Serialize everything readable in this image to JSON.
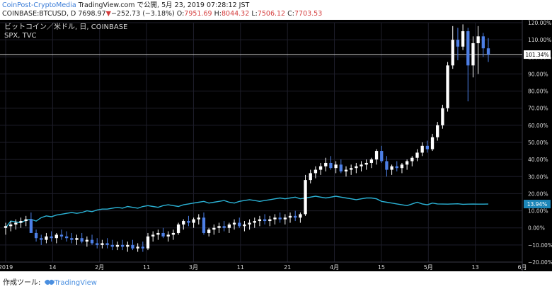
{
  "header": {
    "credit_link": "CoinPost-CryptoMedia",
    "credit_rest": " TradingView.com で公開, 5月 23, 2019 07:28:12 JST",
    "symbol": "COINBASE:BTCUSD, D",
    "last": "7698.97",
    "change_arrow": "▼",
    "change": "−252.73 (−3.18%)",
    "o_label": "O:",
    "o_value": "7951.69",
    "h_label": "H:",
    "h_value": "8044.32",
    "l_label": "L:",
    "l_value": "7506.12",
    "c_label": "C:",
    "c_value": "7703.53"
  },
  "legend": {
    "main": "ビットコイン／米ドル, 日, COINBASE",
    "compare": "SPX, TVC"
  },
  "footer": {
    "made_with": "作成ツール:",
    "brand": "TradingView"
  },
  "colors": {
    "background": "#000000",
    "grid": "#1e1e2a",
    "candle_up": "#ffffff",
    "candle_down": "#4d7fe6",
    "spx_line": "#2bb3d6",
    "axis_text": "#d9d9d9",
    "price_label_bg": "#ffffff",
    "spx_label_bg": "#1d86b8"
  },
  "chart_data": {
    "type": "line",
    "x_tick_labels": [
      "2019",
      "14",
      "2月",
      "11",
      "3月",
      "11",
      "21",
      "4月",
      "15",
      "5月",
      "13",
      "6月"
    ],
    "y_tick_labels": [
      "120.00%",
      "110.00%",
      "100.00%",
      "90.00%",
      "80.00%",
      "70.00%",
      "60.00%",
      "50.00%",
      "40.00%",
      "30.00%",
      "20.00%",
      "10.00%",
      "0.00%",
      "−10.00%",
      "−20.00%"
    ],
    "ylim": [
      -20,
      120
    ],
    "y_unit": "%",
    "current_labels": {
      "btc": "101.34%",
      "spx": "13.94%"
    },
    "series": [
      {
        "name": "ビットコイン／米ドル, 日, COINBASE",
        "kind": "candlestick",
        "values": [
          [
            0.0,
            3.0,
            -4.0,
            1.0
          ],
          [
            1.0,
            4.0,
            -2.0,
            2.0
          ],
          [
            2.0,
            5.0,
            -1.0,
            3.0
          ],
          [
            3.0,
            6.0,
            0.0,
            4.0
          ],
          [
            4.0,
            7.0,
            1.0,
            5.0
          ],
          [
            5.0,
            9.0,
            -2.0,
            -3.0
          ],
          [
            -3.0,
            -1.0,
            -8.0,
            -6.0
          ],
          [
            -6.0,
            -4.0,
            -10.0,
            -7.0
          ],
          [
            -7.0,
            -3.0,
            -9.0,
            -5.0
          ],
          [
            -5.0,
            -2.0,
            -8.0,
            -6.0
          ],
          [
            -6.0,
            -3.0,
            -9.0,
            -4.0
          ],
          [
            -4.0,
            -1.0,
            -7.0,
            -5.0
          ],
          [
            -5.0,
            -2.0,
            -8.0,
            -6.0
          ],
          [
            -6.0,
            -3.0,
            -9.0,
            -7.0
          ],
          [
            -7.0,
            -4.0,
            -10.0,
            -6.0
          ],
          [
            -6.0,
            -3.0,
            -9.0,
            -8.0
          ],
          [
            -8.0,
            -5.0,
            -11.0,
            -7.0
          ],
          [
            -7.0,
            -4.0,
            -10.0,
            -9.0
          ],
          [
            -9.0,
            -6.0,
            -12.0,
            -10.0
          ],
          [
            -10.0,
            -7.0,
            -12.0,
            -9.0
          ],
          [
            -9.0,
            -6.0,
            -12.0,
            -10.0
          ],
          [
            -10.0,
            -7.0,
            -13.0,
            -11.0
          ],
          [
            -11.0,
            -8.0,
            -13.0,
            -10.0
          ],
          [
            -10.0,
            -7.0,
            -13.0,
            -11.0
          ],
          [
            -11.0,
            -8.0,
            -14.0,
            -10.0
          ],
          [
            -10.0,
            -7.0,
            -13.0,
            -12.0
          ],
          [
            -12.0,
            -9.0,
            -14.0,
            -11.0
          ],
          [
            -11.0,
            -8.0,
            -14.0,
            -12.0
          ],
          [
            -12.0,
            -3.0,
            -13.0,
            -5.0
          ],
          [
            -5.0,
            -2.0,
            -8.0,
            -4.0
          ],
          [
            -4.0,
            -1.0,
            -7.0,
            -3.0
          ],
          [
            -3.0,
            0.0,
            -6.0,
            -5.0
          ],
          [
            -5.0,
            -2.0,
            -8.0,
            -4.0
          ],
          [
            -4.0,
            -1.0,
            -7.0,
            -3.0
          ],
          [
            -3.0,
            3.0,
            -4.0,
            2.0
          ],
          [
            2.0,
            5.0,
            -1.0,
            4.0
          ],
          [
            4.0,
            7.0,
            1.0,
            3.0
          ],
          [
            3.0,
            6.0,
            0.0,
            5.0
          ],
          [
            5.0,
            8.0,
            2.0,
            6.0
          ],
          [
            6.0,
            9.0,
            -4.0,
            -3.0
          ],
          [
            -3.0,
            0.0,
            -5.0,
            -1.0
          ],
          [
            -1.0,
            2.0,
            -4.0,
            0.0
          ],
          [
            0.0,
            3.0,
            -3.0,
            1.0
          ],
          [
            1.0,
            4.0,
            -2.0,
            0.0
          ],
          [
            0.0,
            3.0,
            -3.0,
            2.0
          ],
          [
            2.0,
            5.0,
            -1.0,
            3.0
          ],
          [
            3.0,
            6.0,
            0.0,
            1.0
          ],
          [
            1.0,
            4.0,
            -2.0,
            2.0
          ],
          [
            2.0,
            5.0,
            -1.0,
            3.0
          ],
          [
            3.0,
            6.0,
            0.0,
            4.0
          ],
          [
            4.0,
            7.0,
            1.0,
            5.0
          ],
          [
            5.0,
            8.0,
            2.0,
            4.0
          ],
          [
            4.0,
            7.0,
            1.0,
            5.0
          ],
          [
            5.0,
            8.0,
            2.0,
            6.0
          ],
          [
            6.0,
            9.0,
            3.0,
            5.0
          ],
          [
            5.0,
            8.0,
            2.0,
            6.0
          ],
          [
            6.0,
            9.0,
            3.0,
            7.0
          ],
          [
            7.0,
            10.0,
            4.0,
            6.0
          ],
          [
            6.0,
            9.0,
            3.0,
            8.0
          ],
          [
            8.0,
            31.0,
            7.0,
            28.0
          ],
          [
            28.0,
            34.0,
            26.0,
            32.0
          ],
          [
            32.0,
            36.0,
            29.0,
            34.0
          ],
          [
            34.0,
            38.0,
            31.0,
            36.0
          ],
          [
            36.0,
            41.0,
            33.0,
            38.0
          ],
          [
            38.0,
            42.0,
            34.0,
            35.0
          ],
          [
            35.0,
            39.0,
            32.0,
            37.0
          ],
          [
            37.0,
            40.0,
            32.0,
            33.0
          ],
          [
            33.0,
            36.0,
            30.0,
            34.0
          ],
          [
            34.0,
            37.0,
            31.0,
            35.0
          ],
          [
            35.0,
            38.0,
            32.0,
            36.0
          ],
          [
            36.0,
            39.0,
            33.0,
            37.0
          ],
          [
            37.0,
            40.0,
            34.0,
            38.0
          ],
          [
            38.0,
            41.0,
            35.0,
            40.0
          ],
          [
            40.0,
            46.0,
            37.0,
            45.0
          ],
          [
            45.0,
            48.0,
            38.0,
            39.0
          ],
          [
            39.0,
            42.0,
            30.0,
            34.0
          ],
          [
            34.0,
            37.0,
            31.0,
            36.0
          ],
          [
            36.0,
            39.0,
            33.0,
            35.0
          ],
          [
            35.0,
            38.0,
            32.0,
            37.0
          ],
          [
            37.0,
            40.0,
            34.0,
            39.0
          ],
          [
            39.0,
            42.0,
            36.0,
            41.0
          ],
          [
            41.0,
            46.0,
            39.0,
            44.0
          ],
          [
            44.0,
            50.0,
            42.0,
            48.0
          ],
          [
            48.0,
            51.0,
            44.0,
            46.0
          ],
          [
            46.0,
            55.0,
            45.0,
            53.0
          ],
          [
            53.0,
            62.0,
            51.0,
            60.0
          ],
          [
            60.0,
            72.0,
            58.0,
            70.0
          ],
          [
            70.0,
            97.0,
            68.0,
            95.0
          ],
          [
            95.0,
            118.0,
            93.0,
            110.0
          ],
          [
            110.0,
            117.0,
            98.0,
            106.0
          ],
          [
            106.0,
            119.0,
            104.0,
            115.0
          ],
          [
            115.0,
            117.0,
            74.0,
            95.0
          ],
          [
            95.0,
            112.0,
            88.0,
            108.0
          ],
          [
            108.0,
            118.0,
            90.0,
            112.0
          ],
          [
            112.0,
            114.0,
            100.0,
            105.0
          ],
          [
            105.0,
            111.0,
            97.0,
            101.34
          ]
        ]
      },
      {
        "name": "SPX, TVC",
        "kind": "line",
        "values": [
          0.0,
          4.0,
          3.5,
          3.0,
          4.5,
          5.0,
          4.0,
          6.0,
          7.0,
          6.5,
          7.5,
          8.0,
          8.5,
          9.0,
          8.5,
          9.0,
          10.0,
          9.5,
          10.5,
          11.0,
          11.0,
          11.5,
          12.0,
          11.5,
          12.5,
          12.0,
          11.5,
          12.5,
          13.0,
          12.5,
          12.0,
          13.0,
          13.5,
          13.0,
          12.5,
          13.5,
          14.0,
          14.5,
          15.0,
          15.5,
          14.5,
          15.0,
          15.5,
          16.0,
          15.0,
          14.5,
          15.5,
          16.0,
          16.5,
          16.0,
          15.5,
          16.0,
          16.5,
          17.0,
          17.5,
          17.0,
          17.5,
          18.0,
          17.0,
          17.5,
          18.0,
          18.5,
          18.0,
          17.5,
          18.0,
          18.5,
          18.0,
          17.5,
          17.0,
          16.5,
          17.0,
          17.5,
          17.5,
          17.0,
          15.5,
          15.0,
          14.5,
          14.0,
          13.5,
          13.0,
          14.0,
          15.0,
          14.0,
          13.5,
          14.5,
          14.0,
          13.94,
          13.9,
          14.0,
          14.1,
          13.8,
          13.9,
          13.94,
          13.9,
          13.9,
          13.94
        ]
      }
    ],
    "grid": true
  }
}
